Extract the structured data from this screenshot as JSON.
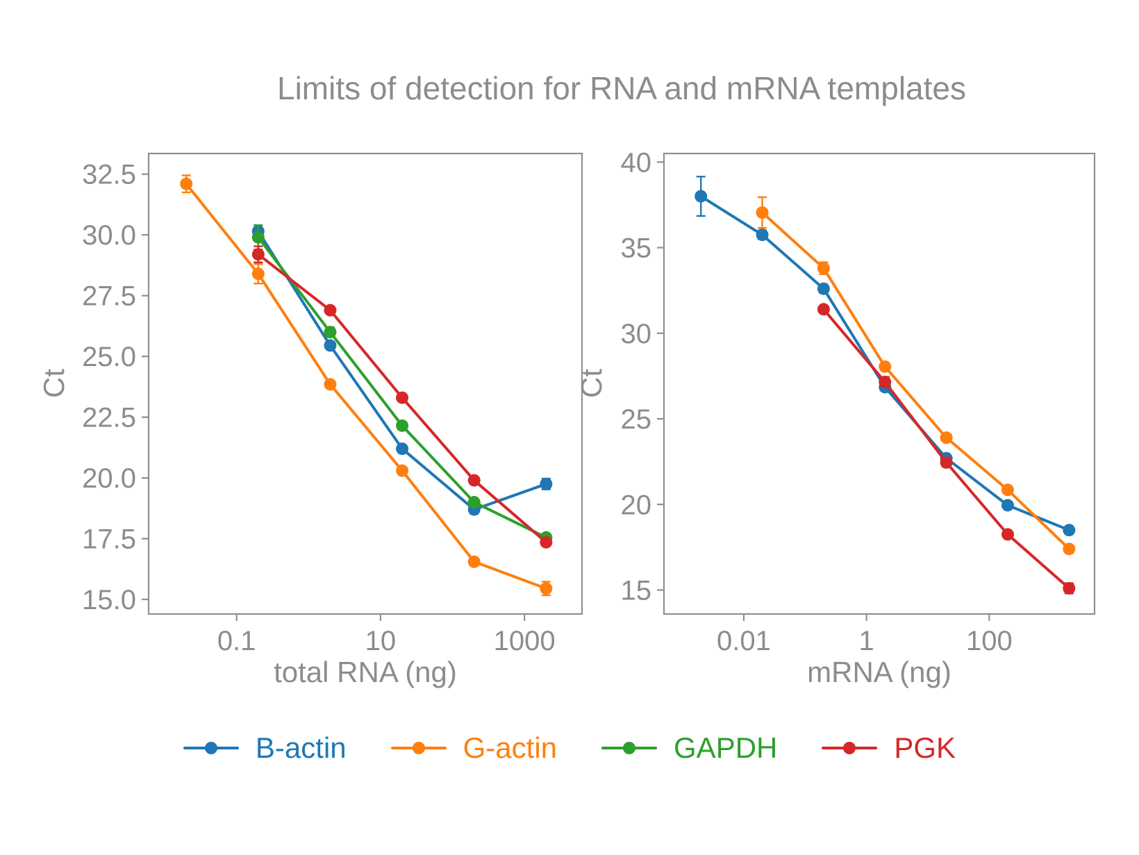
{
  "title": "Limits of detection for RNA and mRNA templates",
  "colors": {
    "text": "#8c8c8c",
    "spine": "#8f8f8f",
    "background": "#ffffff",
    "b_actin": "#1f77b4",
    "g_actin": "#ff7f0e",
    "gapdh": "#2ca02c",
    "pgk": "#d62728"
  },
  "legend": {
    "position": "bottom-center",
    "items": [
      {
        "label": "B-actin",
        "color": "#1f77b4"
      },
      {
        "label": "G-actin",
        "color": "#ff7f0e"
      },
      {
        "label": "GAPDH",
        "color": "#2ca02c"
      },
      {
        "label": "PGK",
        "color": "#d62728"
      }
    ]
  },
  "chart_data": [
    {
      "type": "line",
      "title": "",
      "xlabel": "total RNA (ng)",
      "ylabel": "Ct",
      "xscale": "log",
      "grid": false,
      "xlim": [
        0.006,
        6300
      ],
      "ylim": [
        14.4,
        33.35
      ],
      "xticks": [
        0.1,
        10,
        1000
      ],
      "xtick_labels": [
        "0.1",
        "10",
        "1000"
      ],
      "yticks": [
        15.0,
        17.5,
        20.0,
        22.5,
        25.0,
        27.5,
        30.0,
        32.5
      ],
      "ytick_labels": [
        "15.0",
        "17.5",
        "20.0",
        "22.5",
        "25.0",
        "27.5",
        "30.0",
        "32.5"
      ],
      "series": [
        {
          "name": "B-actin",
          "color": "#1f77b4",
          "x": [
            0.2,
            2,
            20,
            200,
            2000
          ],
          "y": [
            30.15,
            25.45,
            21.2,
            18.7,
            19.75
          ],
          "yerr": [
            0.25,
            0.1,
            0.1,
            0.18,
            0.22
          ]
        },
        {
          "name": "G-actin",
          "color": "#ff7f0e",
          "x": [
            0.02,
            0.2,
            2,
            20,
            200,
            2000
          ],
          "y": [
            32.1,
            28.4,
            23.85,
            20.3,
            16.55,
            15.45
          ],
          "yerr": [
            0.35,
            0.4,
            0.1,
            0.12,
            0.1,
            0.28
          ]
        },
        {
          "name": "GAPDH",
          "color": "#2ca02c",
          "x": [
            0.2,
            2,
            20,
            200,
            2000
          ],
          "y": [
            29.9,
            26.0,
            22.15,
            19.0,
            17.55
          ],
          "yerr": [
            0.5,
            0.2,
            0.15,
            0.12,
            0.1
          ]
        },
        {
          "name": "PGK",
          "color": "#d62728",
          "x": [
            0.2,
            2,
            20,
            200,
            2000
          ],
          "y": [
            29.2,
            26.9,
            23.3,
            19.9,
            17.35
          ],
          "yerr": [
            0.33,
            0.12,
            0.1,
            0.12,
            0.1
          ]
        }
      ]
    },
    {
      "type": "line",
      "title": "",
      "xlabel": "mRNA (ng)",
      "ylabel": "Ct",
      "xscale": "log",
      "grid": false,
      "xlim": [
        0.0005,
        5200
      ],
      "ylim": [
        13.6,
        40.5
      ],
      "xticks": [
        0.01,
        1,
        100
      ],
      "xtick_labels": [
        "0.01",
        "1",
        "100"
      ],
      "yticks": [
        15,
        20,
        25,
        30,
        35,
        40
      ],
      "ytick_labels": [
        "15",
        "20",
        "25",
        "30",
        "35",
        "40"
      ],
      "series": [
        {
          "name": "B-actin",
          "color": "#1f77b4",
          "x": [
            0.002,
            0.02,
            0.2,
            2,
            20,
            200,
            2000
          ],
          "y": [
            38.0,
            35.75,
            32.6,
            26.85,
            22.7,
            19.95,
            18.5
          ],
          "yerr": [
            1.15,
            0.25,
            0.25,
            0.15,
            0.2,
            0.15,
            0.12
          ]
        },
        {
          "name": "G-actin",
          "color": "#ff7f0e",
          "x": [
            0.02,
            0.2,
            2,
            20,
            200,
            2000
          ],
          "y": [
            37.05,
            33.8,
            28.05,
            23.9,
            20.85,
            17.4
          ],
          "yerr": [
            0.9,
            0.35,
            0.15,
            0.12,
            0.12,
            0.12
          ]
        },
        {
          "name": "PGK",
          "color": "#d62728",
          "x": [
            0.2,
            2,
            20,
            200,
            2000
          ],
          "y": [
            31.4,
            27.15,
            22.45,
            18.25,
            15.1
          ],
          "yerr": [
            0.2,
            0.3,
            0.25,
            0.2,
            0.3
          ]
        }
      ]
    }
  ]
}
